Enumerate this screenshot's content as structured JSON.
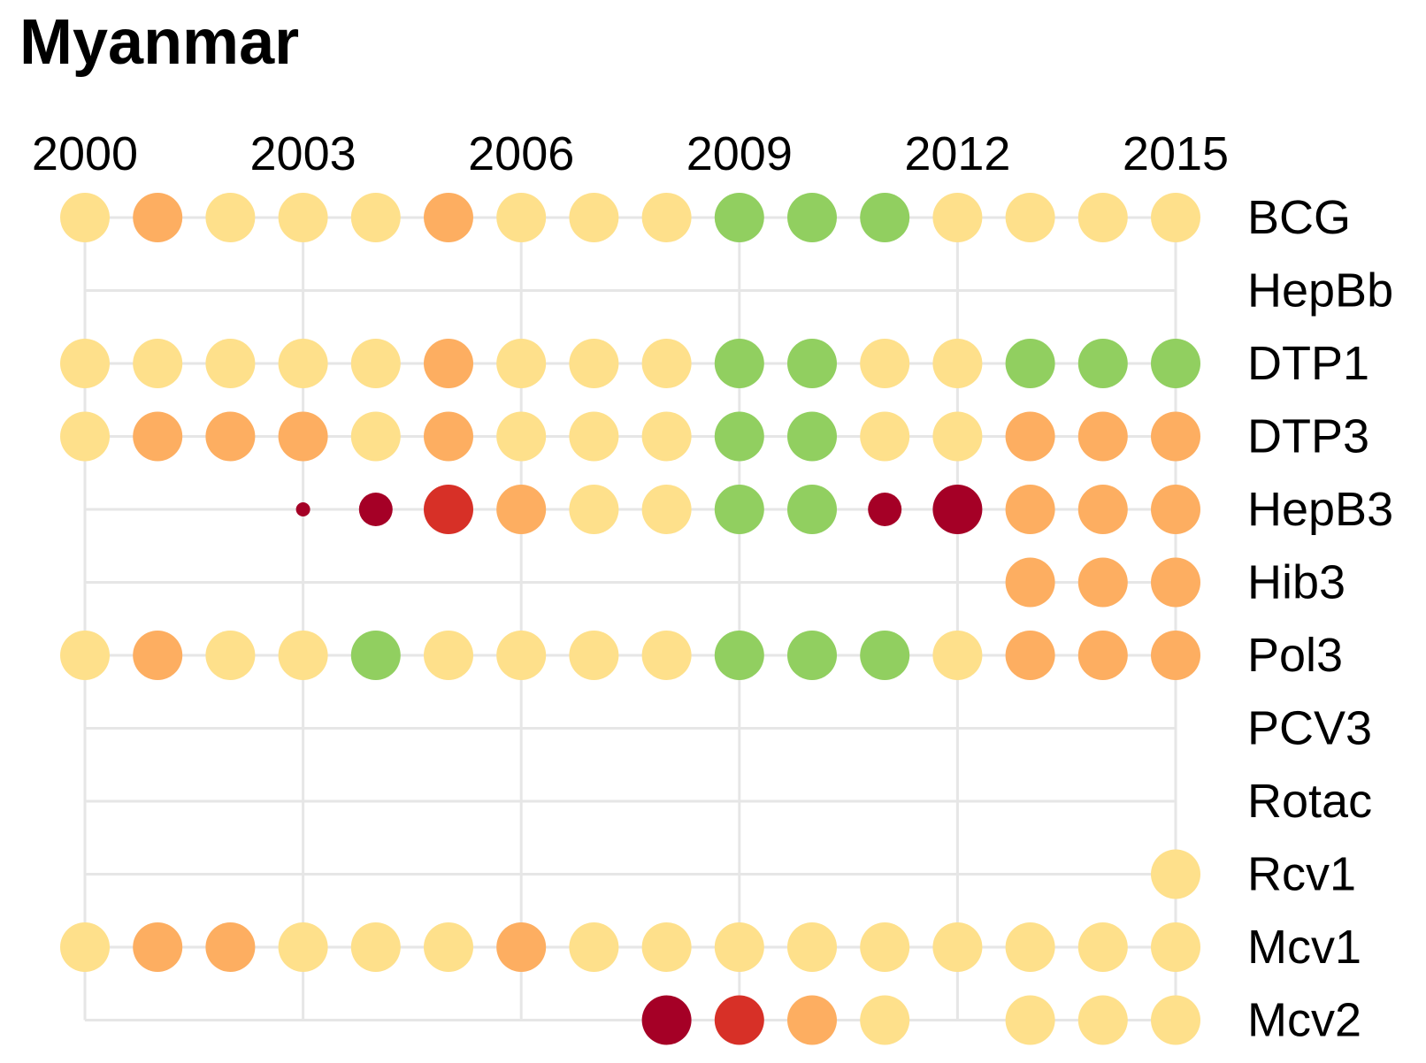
{
  "title": "Myanmar",
  "colors": {
    "gridline": "#e6e6e6",
    "levels": {
      "1": "#a50026",
      "2": "#d73027",
      "3": "#fdae61",
      "4": "#fee08b",
      "5": "#91cf60"
    }
  },
  "chart_data": {
    "type": "dot-matrix",
    "title": "Myanmar",
    "x": [
      2000,
      2001,
      2002,
      2003,
      2004,
      2005,
      2006,
      2007,
      2008,
      2009,
      2010,
      2011,
      2012,
      2013,
      2014,
      2015
    ],
    "x_tick_labels": [
      "2000",
      "2003",
      "2006",
      "2009",
      "2012",
      "2015"
    ],
    "y_labels": [
      "BCG",
      "HepBb",
      "DTP1",
      "DTP3",
      "HepB3",
      "Hib3",
      "Pol3",
      "PCV3",
      "Rotac",
      "Rcv1",
      "Mcv1",
      "Mcv2"
    ],
    "legend": "none",
    "grid": true,
    "series": [
      {
        "name": "BCG",
        "values": [
          4,
          3,
          4,
          4,
          4,
          3,
          4,
          4,
          4,
          5,
          5,
          5,
          4,
          4,
          4,
          4
        ]
      },
      {
        "name": "HepBb",
        "values": [
          null,
          null,
          null,
          null,
          null,
          null,
          null,
          null,
          null,
          null,
          null,
          null,
          null,
          null,
          null,
          null
        ]
      },
      {
        "name": "DTP1",
        "values": [
          4,
          4,
          4,
          4,
          4,
          3,
          4,
          4,
          4,
          5,
          5,
          4,
          4,
          5,
          5,
          5
        ]
      },
      {
        "name": "DTP3",
        "values": [
          4,
          3,
          3,
          3,
          4,
          3,
          4,
          4,
          4,
          5,
          5,
          4,
          4,
          3,
          3,
          3
        ]
      },
      {
        "name": "HepB3",
        "values": [
          null,
          null,
          null,
          "1s",
          "1m",
          2,
          3,
          4,
          4,
          5,
          5,
          "1m",
          1,
          3,
          3,
          3
        ]
      },
      {
        "name": "Hib3",
        "values": [
          null,
          null,
          null,
          null,
          null,
          null,
          null,
          null,
          null,
          null,
          null,
          null,
          null,
          3,
          3,
          3
        ]
      },
      {
        "name": "Pol3",
        "values": [
          4,
          3,
          4,
          4,
          5,
          4,
          4,
          4,
          4,
          5,
          5,
          5,
          4,
          3,
          3,
          3
        ]
      },
      {
        "name": "PCV3",
        "values": [
          null,
          null,
          null,
          null,
          null,
          null,
          null,
          null,
          null,
          null,
          null,
          null,
          null,
          null,
          null,
          null
        ]
      },
      {
        "name": "Rotac",
        "values": [
          null,
          null,
          null,
          null,
          null,
          null,
          null,
          null,
          null,
          null,
          null,
          null,
          null,
          null,
          null,
          null
        ]
      },
      {
        "name": "Rcv1",
        "values": [
          null,
          null,
          null,
          null,
          null,
          null,
          null,
          null,
          null,
          null,
          null,
          null,
          null,
          null,
          null,
          4
        ]
      },
      {
        "name": "Mcv1",
        "values": [
          4,
          3,
          3,
          4,
          4,
          4,
          3,
          4,
          4,
          4,
          4,
          4,
          4,
          4,
          4,
          4
        ]
      },
      {
        "name": "Mcv2",
        "values": [
          null,
          null,
          null,
          null,
          null,
          null,
          null,
          null,
          1,
          2,
          3,
          4,
          null,
          4,
          4,
          4
        ]
      }
    ]
  }
}
